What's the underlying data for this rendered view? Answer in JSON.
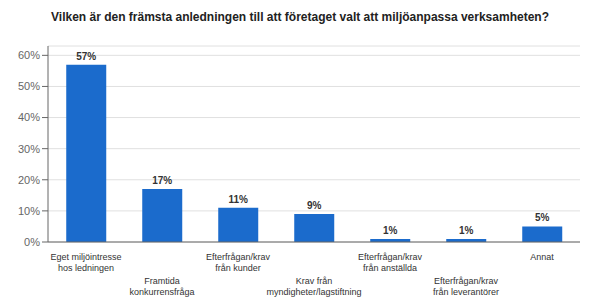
{
  "chart_data": {
    "type": "bar",
    "title": "Vilken är den främsta anledningen till att företaget valt att miljöanpassa verksamheten?",
    "categories": [
      "Eget miljöintresse hos ledningen",
      "Framtida konkurrensfråga",
      "Efterfrågan/krav från kunder",
      "Krav från myndigheter/lagstiftning",
      "Efterfrågan/krav från anställda",
      "Efterfrågan/krav från leverantörer",
      "Annat"
    ],
    "values": [
      57,
      17,
      11,
      9,
      1,
      1,
      5
    ],
    "value_labels": [
      "57%",
      "17%",
      "11%",
      "9%",
      "1%",
      "1%",
      "5%"
    ],
    "data_labels": true,
    "color": "#1B6BCC",
    "ylim": [
      0,
      63
    ],
    "yticks": [
      {
        "value": 0,
        "label": "0%"
      },
      {
        "value": 10,
        "label": "10%"
      },
      {
        "value": 20,
        "label": "20%"
      },
      {
        "value": 30,
        "label": "30%"
      },
      {
        "value": 40,
        "label": "40%"
      },
      {
        "value": 50,
        "label": "50%"
      },
      {
        "value": 60,
        "label": "60%"
      }
    ],
    "grid": true
  }
}
